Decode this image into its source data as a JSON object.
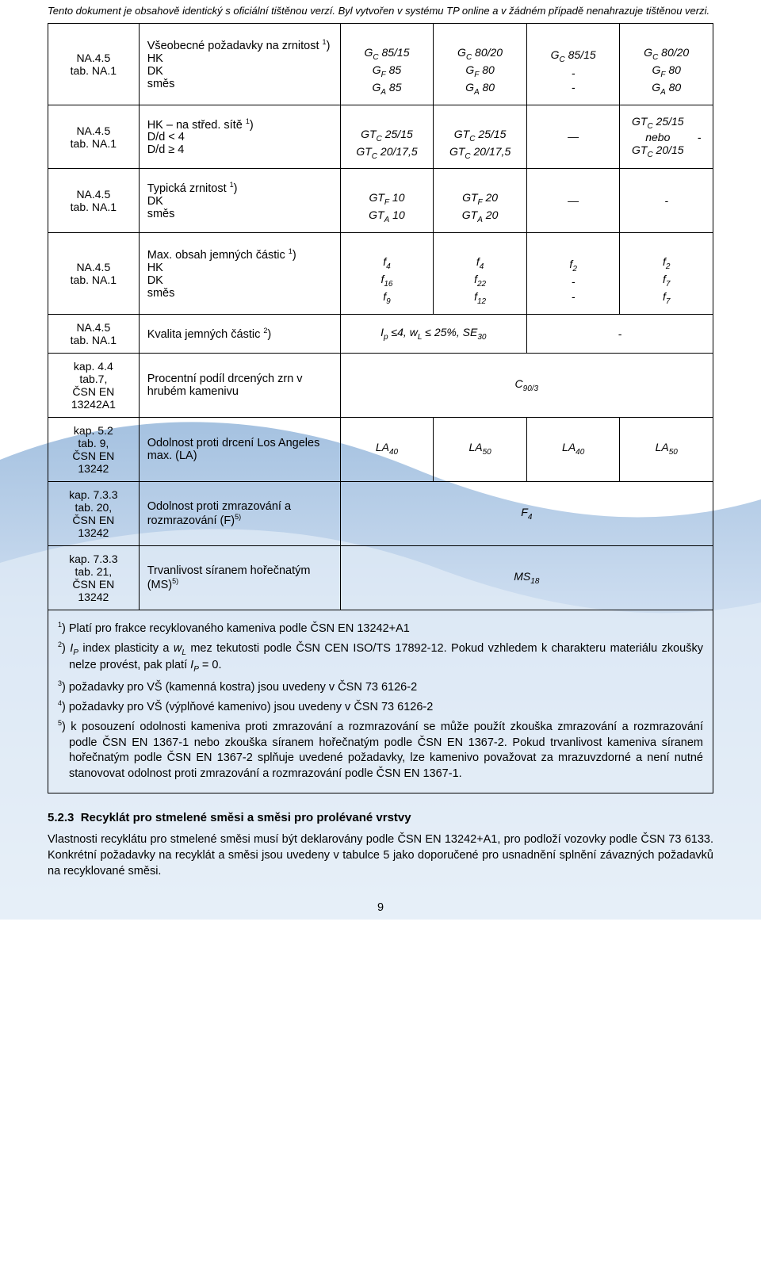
{
  "top_note": "Tento dokument je obsahově identický s oficiální tištěnou verzí. Byl vytvořen v systému TP online a v žádném případě nenahrazuje tištěnou verzi.",
  "rows": [
    {
      "ref": "NA.4.5\ntab. NA.1",
      "desc_lines": [
        "Všeobecné požadavky na zrnitost ¹)",
        "HK",
        "DK",
        "směs"
      ],
      "c1_lines": [
        "",
        "G_C 85/15",
        "G_F 85",
        "G_A 85"
      ],
      "c2_lines": [
        "",
        "G_C 80/20",
        "G_F 80",
        "G_A 80"
      ],
      "c3_lines": [
        "",
        "G_C 85/15",
        "-",
        "-"
      ],
      "c4_lines": [
        "",
        "G_C 80/20",
        "G_F 80",
        "G_A 80"
      ]
    },
    {
      "ref": "NA.4.5\ntab. NA.1",
      "desc_lines": [
        "HK – na střed. sítě ¹)",
        "D/d < 4",
        "D/d ≥ 4"
      ],
      "c1_lines": [
        "",
        "GT_C 25/15",
        "GT_C 20/17,5"
      ],
      "c2_lines": [
        "",
        "GT_C 25/15",
        "GT_C 20/17,5"
      ],
      "c3_lines": [
        "—"
      ],
      "c4_lines": [
        "GT_C 25/15",
        "nebo",
        "GT_C 20/15",
        "-"
      ],
      "c4_twocol": true
    },
    {
      "ref": "NA.4.5\ntab. NA.1",
      "desc_lines": [
        "Typická zrnitost ¹)",
        "DK",
        "směs"
      ],
      "c1_lines": [
        "",
        "GT_F 10",
        "GT_A 10"
      ],
      "c2_lines": [
        "",
        "GT_F 20",
        "GT_A 20"
      ],
      "c3_lines": [
        "—"
      ],
      "c4_lines": [
        "-"
      ]
    },
    {
      "ref": "NA.4.5\ntab. NA.1",
      "desc_lines": [
        "Max. obsah jemných částic ¹)",
        "HK",
        "DK",
        "směs"
      ],
      "c1_lines": [
        "",
        "f_4",
        "f_16",
        "f_9"
      ],
      "c2_lines": [
        "",
        "f_4",
        "f_22",
        "f_12"
      ],
      "c3_lines": [
        "",
        "f_2",
        "-",
        "-"
      ],
      "c4_lines": [
        "",
        "f_2",
        "f_7",
        "f_7"
      ]
    },
    {
      "ref": "NA.4.5\ntab. NA.1",
      "desc_plain": "Kvalita jemných částic ²)",
      "span12": "I_p ≤4, w_L ≤ 25%, SE_30",
      "span34": "-"
    },
    {
      "ref": "kap. 4.4\ntab.7,\nČSN EN\n13242A1",
      "desc_plain": "Procentní podíl drcených zrn v hrubém kamenivu",
      "span_all": "C_90/3"
    },
    {
      "ref": "kap. 5.2\ntab. 9,\nČSN EN\n13242",
      "desc_plain": "Odolnost proti drcení Los Angeles max. (LA)",
      "c1_lines": [
        "LA_40"
      ],
      "c2_lines": [
        "LA_50"
      ],
      "c3_lines": [
        "LA_40"
      ],
      "c4_lines": [
        "LA_50"
      ]
    },
    {
      "ref": "kap. 7.3.3\ntab. 20,\nČSN EN\n13242",
      "desc_plain": "Odolnost proti zmrazování a rozmrazování (F)⁵ᵗ",
      "desc_super": "5)",
      "span_all": "F_4"
    },
    {
      "ref": "kap. 7.3.3\ntab. 21,\nČSN EN\n13242",
      "desc_plain": "Trvanlivost síranem hořečnatým (MS)⁵ᵗ",
      "desc_super": "5)",
      "span_all": "MS_18"
    }
  ],
  "footnotes": [
    "¹) Platí pro frakce recyklovaného kameniva podle ČSN EN 13242+A1",
    "²) I_P index plasticity a w_L mez tekutosti podle ČSN CEN ISO/TS 17892-12. Pokud vzhledem k charakteru materiálu zkoušky nelze provést, pak platí I_P = 0.",
    "³) požadavky pro VŠ (kamenná kostra) jsou uvedeny v ČSN 73 6126-2",
    "⁴) požadavky pro VŠ (výplňové kamenivo) jsou uvedeny v ČSN 73 6126-2",
    "⁵) k posouzení odolnosti kameniva proti zmrazování a rozmrazování se může použít zkouška zmrazování a rozmrazování podle ČSN EN 1367-1 nebo zkouška síranem hořečnatým podle ČSN EN 1367-2. Pokud trvanlivost kameniva síranem hořečnatým podle ČSN EN 1367-2 splňuje uvedené požadavky, lze kamenivo považovat za mrazuvzdorné a není nutné stanovovat odolnost proti zmrazování a rozmrazování podle ČSN EN 1367-1."
  ],
  "section": {
    "number": "5.2.3",
    "title": "Recyklát pro stmelené směsi a směsi pro prolévané vrstvy"
  },
  "body_para": "Vlastnosti recyklátu pro stmelené směsi musí být deklarovány podle ČSN EN 13242+A1, pro podloží vozovky podle ČSN 73 6133. Konkrétní požadavky na recyklát a směsi jsou uvedeny v tabulce 5 jako doporučené pro usnadnění splnění závazných požadavků na recyklované směsi.",
  "page_number": "9",
  "colors": {
    "wm_top": "#5b8fc7",
    "wm_mid": "#a9c5e6",
    "wm_bot": "#e3edf7"
  }
}
